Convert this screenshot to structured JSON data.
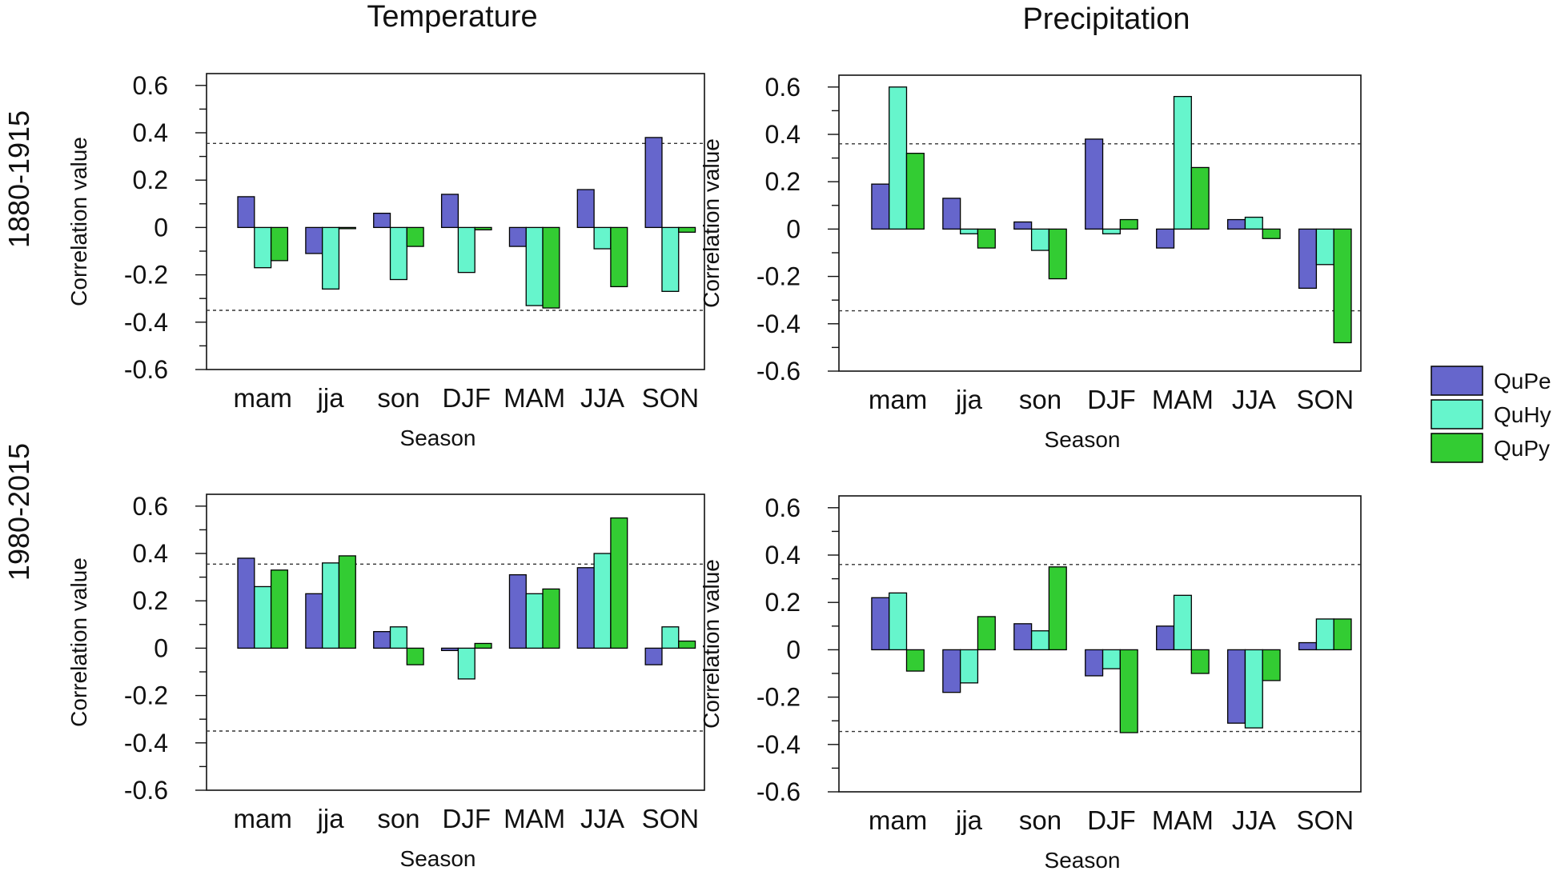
{
  "figure": {
    "column_titles": [
      "Temperature",
      "Precipitation"
    ],
    "row_labels": [
      "1880-1915",
      "1980-2015"
    ],
    "colors": {
      "QuPe": "#6666cc",
      "QuHy": "#66f5cc",
      "QuPy": "#33cc33"
    }
  },
  "chart_data": [
    {
      "type": "bar",
      "title": "Temperature",
      "period": "1880-1915",
      "xlabel": "Season",
      "ylabel": "Correlation value",
      "categories": [
        "mam",
        "jja",
        "son",
        "DJF",
        "MAM",
        "JJA",
        "SON"
      ],
      "ylim": [
        -0.6,
        0.6
      ],
      "yticks": [
        "0.6",
        "0.4",
        "0.2",
        "0",
        "-0.2",
        "-0.4",
        "-0.6"
      ],
      "significance_lines": [
        0.355,
        -0.35
      ],
      "series": [
        {
          "name": "QuPe",
          "values": [
            0.13,
            -0.11,
            0.06,
            0.14,
            -0.08,
            0.16,
            0.38
          ]
        },
        {
          "name": "QuHy",
          "values": [
            -0.17,
            -0.26,
            -0.22,
            -0.19,
            -0.33,
            -0.09,
            -0.27
          ]
        },
        {
          "name": "QuPy",
          "values": [
            -0.14,
            0.0,
            -0.08,
            -0.01,
            -0.34,
            -0.25,
            -0.02
          ]
        }
      ]
    },
    {
      "type": "bar",
      "title": "Precipitation",
      "period": "1880-1915",
      "xlabel": "Season",
      "ylabel": "Correlation value",
      "categories": [
        "mam",
        "jja",
        "son",
        "DJF",
        "MAM",
        "JJA",
        "SON"
      ],
      "ylim": [
        -0.6,
        0.6
      ],
      "yticks": [
        "0.6",
        "0.4",
        "0.2",
        "0",
        "-0.2",
        "-0.4",
        "-0.6"
      ],
      "significance_lines": [
        0.36,
        -0.345
      ],
      "series": [
        {
          "name": "QuPe",
          "values": [
            0.19,
            0.13,
            0.03,
            0.38,
            -0.08,
            0.04,
            -0.25
          ]
        },
        {
          "name": "QuHy",
          "values": [
            0.6,
            -0.02,
            -0.09,
            -0.02,
            0.56,
            0.05,
            -0.15
          ]
        },
        {
          "name": "QuPy",
          "values": [
            0.32,
            -0.08,
            -0.21,
            0.04,
            0.26,
            -0.04,
            -0.48
          ]
        }
      ]
    },
    {
      "type": "bar",
      "title": "Temperature",
      "period": "1980-2015",
      "xlabel": "Season",
      "ylabel": "Correlation value",
      "categories": [
        "mam",
        "jja",
        "son",
        "DJF",
        "MAM",
        "JJA",
        "SON"
      ],
      "ylim": [
        -0.6,
        0.6
      ],
      "yticks": [
        "0.6",
        "0.4",
        "0.2",
        "0",
        "-0.2",
        "-0.4",
        "-0.6"
      ],
      "significance_lines": [
        0.355,
        -0.35
      ],
      "series": [
        {
          "name": "QuPe",
          "values": [
            0.38,
            0.23,
            0.07,
            -0.01,
            0.31,
            0.34,
            -0.07
          ]
        },
        {
          "name": "QuHy",
          "values": [
            0.26,
            0.36,
            0.09,
            -0.13,
            0.23,
            0.4,
            0.09
          ]
        },
        {
          "name": "QuPy",
          "values": [
            0.33,
            0.39,
            -0.07,
            0.02,
            0.25,
            0.55,
            0.03
          ]
        }
      ]
    },
    {
      "type": "bar",
      "title": "Precipitation",
      "period": "1980-2015",
      "xlabel": "Season",
      "ylabel": "Correlation value",
      "categories": [
        "mam",
        "jja",
        "son",
        "DJF",
        "MAM",
        "JJA",
        "SON"
      ],
      "ylim": [
        -0.6,
        0.6
      ],
      "yticks": [
        "0.6",
        "0.4",
        "0.2",
        "0",
        "-0.2",
        "-0.4",
        "-0.6"
      ],
      "significance_lines": [
        0.36,
        -0.345
      ],
      "series": [
        {
          "name": "QuPe",
          "values": [
            0.22,
            -0.18,
            0.11,
            -0.11,
            0.1,
            -0.31,
            0.03
          ]
        },
        {
          "name": "QuHy",
          "values": [
            0.24,
            -0.14,
            0.08,
            -0.08,
            0.23,
            -0.33,
            0.13
          ]
        },
        {
          "name": "QuPy",
          "values": [
            -0.09,
            0.14,
            0.35,
            -0.35,
            -0.1,
            -0.13,
            0.13
          ]
        }
      ]
    }
  ],
  "legend": {
    "items": [
      {
        "name": "QuPe",
        "label": "QuPe"
      },
      {
        "name": "QuHy",
        "label": "QuHy"
      },
      {
        "name": "QuPy",
        "label": "QuPy"
      }
    ]
  }
}
